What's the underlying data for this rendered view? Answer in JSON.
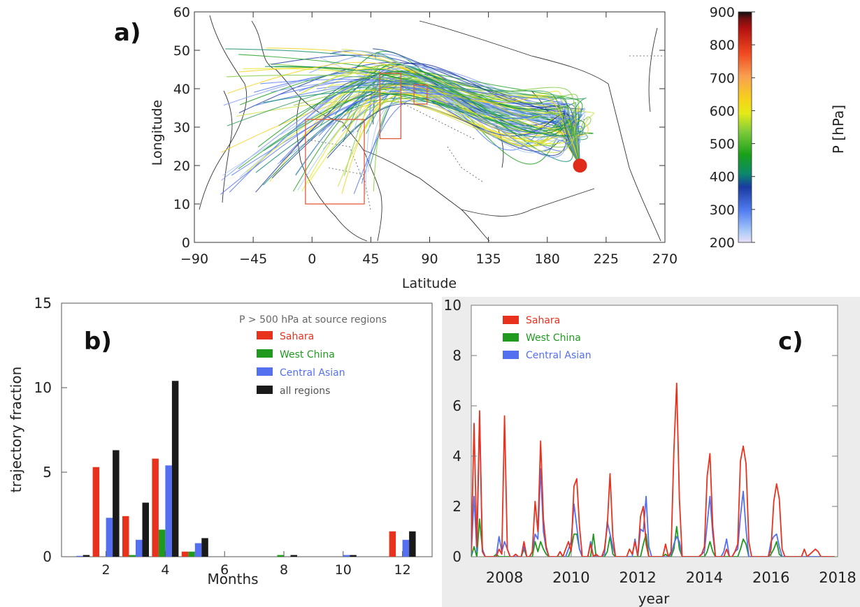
{
  "panels": {
    "a": {
      "label": "a)",
      "xlabel": "Latitude",
      "ylabel": "Longitude",
      "xlim": [
        -90,
        270
      ],
      "ylim": [
        0,
        60
      ],
      "xticks": [
        -90,
        -45,
        0,
        45,
        90,
        135,
        180,
        225,
        270
      ],
      "yticks": [
        0,
        10,
        20,
        30,
        40,
        50,
        60
      ],
      "source_boxes": [
        {
          "name": "Sahara",
          "lon": [
            -5,
            40
          ],
          "lat": [
            10,
            32
          ]
        },
        {
          "name": "Central Asian",
          "lon": [
            52,
            68
          ],
          "lat": [
            27,
            44
          ]
        },
        {
          "name": "West China",
          "lon": [
            78,
            88
          ],
          "lat": [
            36,
            41
          ]
        }
      ],
      "receptor": {
        "lon": 205,
        "lat": 20
      },
      "colorbar": {
        "title": "P [hPa]",
        "ticks": [
          200,
          300,
          400,
          500,
          600,
          700,
          800,
          900
        ],
        "range": [
          200,
          900
        ]
      }
    },
    "b": {
      "label": "b)",
      "annotation": "P > 500 hPa at source regions",
      "xlabel": "Months",
      "ylabel": "trajectory fraction",
      "xticks": [
        2,
        4,
        6,
        8,
        10,
        12
      ],
      "yticks": [
        0,
        5,
        10,
        15
      ],
      "legend": [
        "Sahara",
        "West China",
        "Central Asian",
        "all regions"
      ]
    },
    "c": {
      "label": "c)",
      "xlabel": "year",
      "xticks": [
        2008,
        2010,
        2012,
        2014,
        2016,
        2018
      ],
      "yticks": [
        0,
        2,
        4,
        6,
        8,
        10
      ],
      "legend": [
        "Sahara",
        "West China",
        "Central Asian"
      ]
    }
  },
  "colors": {
    "sahara": "#e8321e",
    "west_china": "#1f9a1f",
    "central_asian": "#5470f0",
    "all_regions": "#1a1a1a",
    "box": "#e05a3a",
    "receptor": "#e02a1a"
  },
  "chart_data": [
    {
      "type": "line",
      "panel": "a",
      "description_source": "trajectory map",
      "xlim": [
        -90,
        270
      ],
      "ylim": [
        0,
        60
      ],
      "series": []
    },
    {
      "type": "bar",
      "panel": "b",
      "categories": [
        1,
        2,
        3,
        4,
        5,
        6,
        7,
        8,
        9,
        10,
        11,
        12
      ],
      "ylim": [
        0,
        15
      ],
      "series": [
        {
          "name": "Sahara",
          "values": [
            0.0,
            5.3,
            2.4,
            5.8,
            0.3,
            0.0,
            0.0,
            0.0,
            0.0,
            0.0,
            0.0,
            1.5
          ]
        },
        {
          "name": "West China",
          "values": [
            0.0,
            0.0,
            0.1,
            1.6,
            0.3,
            0.0,
            0.0,
            0.1,
            0.0,
            0.0,
            0.0,
            0.0
          ]
        },
        {
          "name": "Central Asian",
          "values": [
            0.05,
            2.3,
            1.0,
            5.4,
            0.8,
            0.0,
            0.0,
            0.0,
            0.0,
            0.1,
            0.0,
            1.0
          ]
        },
        {
          "name": "all regions",
          "values": [
            0.1,
            6.3,
            3.2,
            10.4,
            1.1,
            0.0,
            0.0,
            0.1,
            0.0,
            0.1,
            0.0,
            1.5
          ]
        }
      ]
    },
    {
      "type": "line",
      "panel": "c",
      "xlim": [
        2007.0,
        2018.0
      ],
      "ylim": [
        0,
        10
      ],
      "x": [
        2007.0,
        2007.083,
        2007.167,
        2007.25,
        2007.333,
        2007.417,
        2007.5,
        2007.583,
        2007.667,
        2007.75,
        2007.833,
        2007.917,
        2008.0,
        2008.083,
        2008.167,
        2008.25,
        2008.333,
        2008.417,
        2008.5,
        2008.583,
        2008.667,
        2008.75,
        2008.833,
        2008.917,
        2009.0,
        2009.083,
        2009.167,
        2009.25,
        2009.333,
        2009.417,
        2009.5,
        2009.583,
        2009.667,
        2009.75,
        2009.833,
        2009.917,
        2010.0,
        2010.083,
        2010.167,
        2010.25,
        2010.333,
        2010.417,
        2010.5,
        2010.583,
        2010.667,
        2010.75,
        2010.833,
        2010.917,
        2011.0,
        2011.083,
        2011.167,
        2011.25,
        2011.333,
        2011.417,
        2011.5,
        2011.583,
        2011.667,
        2011.75,
        2011.833,
        2011.917,
        2012.0,
        2012.083,
        2012.167,
        2012.25,
        2012.333,
        2012.417,
        2012.5,
        2012.583,
        2012.667,
        2012.75,
        2012.833,
        2012.917,
        2013.0,
        2013.083,
        2013.167,
        2013.25,
        2013.333,
        2013.417,
        2013.5,
        2013.583,
        2013.667,
        2013.75,
        2013.833,
        2013.917,
        2014.0,
        2014.083,
        2014.167,
        2014.25,
        2014.333,
        2014.417,
        2014.5,
        2014.583,
        2014.667,
        2014.75,
        2014.833,
        2014.917,
        2015.0,
        2015.083,
        2015.167,
        2015.25,
        2015.333,
        2015.417,
        2015.5,
        2015.583,
        2015.667,
        2015.75,
        2015.833,
        2015.917,
        2016.0,
        2016.083,
        2016.167,
        2016.25,
        2016.333,
        2016.417,
        2016.5,
        2016.583,
        2016.667,
        2016.75,
        2016.833,
        2016.917,
        2017.0,
        2017.083,
        2017.167,
        2017.25,
        2017.333,
        2017.417,
        2017.5,
        2017.583,
        2017.667,
        2017.75,
        2017.833,
        2017.917
      ],
      "series": [
        {
          "name": "Sahara",
          "values": [
            0.2,
            5.3,
            0.4,
            5.8,
            0.2,
            0.0,
            0.0,
            0.0,
            0.0,
            0.0,
            0.3,
            0.1,
            5.6,
            0.3,
            0.0,
            0.0,
            0.1,
            0.0,
            0.0,
            0.6,
            0.0,
            0.0,
            0.2,
            2.2,
            1.0,
            4.6,
            1.5,
            0.4,
            0.0,
            0.0,
            0.0,
            0.0,
            0.2,
            0.0,
            0.3,
            0.6,
            0.2,
            2.8,
            3.1,
            1.2,
            0.0,
            0.0,
            0.0,
            0.5,
            0.0,
            0.1,
            0.0,
            0.0,
            0.3,
            1.2,
            3.3,
            0.8,
            0.0,
            0.0,
            0.0,
            0.0,
            0.0,
            0.3,
            0.1,
            0.6,
            0.0,
            1.6,
            2.0,
            0.5,
            0.0,
            0.0,
            0.0,
            0.0,
            0.0,
            0.0,
            0.5,
            0.0,
            0.2,
            4.2,
            6.9,
            2.3,
            0.0,
            0.0,
            0.0,
            0.0,
            0.0,
            0.0,
            0.0,
            0.1,
            0.4,
            3.2,
            4.1,
            1.2,
            0.0,
            0.0,
            0.0,
            0.0,
            0.3,
            0.0,
            0.0,
            0.2,
            0.5,
            3.8,
            4.4,
            3.7,
            0.6,
            0.0,
            0.0,
            0.0,
            0.0,
            0.0,
            0.0,
            0.0,
            0.3,
            2.2,
            2.9,
            2.3,
            0.3,
            0.0,
            0.0,
            0.0,
            0.0,
            0.0,
            0.0,
            0.0,
            0.3,
            0.0,
            0.1,
            0.2,
            0.3,
            0.2,
            0.0,
            0.0,
            0.0,
            0.0,
            0.0,
            0.0
          ]
        },
        {
          "name": "West China",
          "values": [
            0.0,
            0.4,
            0.0,
            1.5,
            0.3,
            0.0,
            0.0,
            0.0,
            0.0,
            0.1,
            0.0,
            0.0,
            0.0,
            0.0,
            0.0,
            0.0,
            0.0,
            0.0,
            0.0,
            0.3,
            0.0,
            0.0,
            0.0,
            0.6,
            0.2,
            0.6,
            0.3,
            0.1,
            0.0,
            0.0,
            0.0,
            0.0,
            0.0,
            0.0,
            0.0,
            0.0,
            0.3,
            0.9,
            0.9,
            0.3,
            0.0,
            0.0,
            0.0,
            0.0,
            0.9,
            0.0,
            0.0,
            0.0,
            0.0,
            0.2,
            0.8,
            0.1,
            0.0,
            0.0,
            0.0,
            0.0,
            0.0,
            0.0,
            0.0,
            0.0,
            0.0,
            0.0,
            0.5,
            0.9,
            0.0,
            0.0,
            0.0,
            0.0,
            0.0,
            0.0,
            0.1,
            0.0,
            0.0,
            0.3,
            1.2,
            0.3,
            0.0,
            0.0,
            0.0,
            0.0,
            0.0,
            0.0,
            0.0,
            0.0,
            0.0,
            0.2,
            0.6,
            0.2,
            0.0,
            0.0,
            0.0,
            0.0,
            0.0,
            0.0,
            0.0,
            0.0,
            0.0,
            0.3,
            0.7,
            0.5,
            0.0,
            0.0,
            0.0,
            0.0,
            0.0,
            0.0,
            0.0,
            0.0,
            0.1,
            0.3,
            0.6,
            0.1,
            0.0,
            0.0,
            0.0,
            0.0,
            0.0,
            0.0,
            0.0,
            0.0,
            0.0,
            0.0,
            0.0,
            0.0,
            0.0,
            0.0,
            0.0,
            0.0,
            0.0,
            0.0,
            0.0,
            0.0
          ]
        },
        {
          "name": "Central Asian",
          "values": [
            0.1,
            2.4,
            0.2,
            5.6,
            0.3,
            0.0,
            0.0,
            0.0,
            0.0,
            0.0,
            0.8,
            0.2,
            0.6,
            0.3,
            0.0,
            0.0,
            0.0,
            0.0,
            0.0,
            0.4,
            0.0,
            0.0,
            0.2,
            0.9,
            0.7,
            3.5,
            1.0,
            0.3,
            0.0,
            0.0,
            0.0,
            0.0,
            0.2,
            0.0,
            0.0,
            0.3,
            0.6,
            2.1,
            1.2,
            0.3,
            0.0,
            0.0,
            0.0,
            0.6,
            0.0,
            0.0,
            0.0,
            0.0,
            0.1,
            1.4,
            0.9,
            0.4,
            0.0,
            0.0,
            0.0,
            0.0,
            0.0,
            0.0,
            0.0,
            0.7,
            0.0,
            1.1,
            1.0,
            2.4,
            0.4,
            0.0,
            0.0,
            0.0,
            0.0,
            0.0,
            0.0,
            0.0,
            0.1,
            0.5,
            0.8,
            0.6,
            0.0,
            0.0,
            0.0,
            0.0,
            0.0,
            0.0,
            0.0,
            0.1,
            0.2,
            1.3,
            2.4,
            0.9,
            0.0,
            0.0,
            0.0,
            0.2,
            0.7,
            0.0,
            0.0,
            0.2,
            0.3,
            1.6,
            2.6,
            1.1,
            0.0,
            0.0,
            0.0,
            0.0,
            0.0,
            0.0,
            0.0,
            0.0,
            0.6,
            0.8,
            0.9,
            0.4,
            0.0,
            0.0,
            0.0,
            0.0,
            0.0,
            0.0,
            0.0,
            0.0,
            0.0,
            0.0,
            0.0,
            0.0,
            0.0,
            0.0,
            0.0,
            0.0,
            0.0,
            0.0,
            0.0,
            0.0
          ]
        }
      ]
    }
  ]
}
